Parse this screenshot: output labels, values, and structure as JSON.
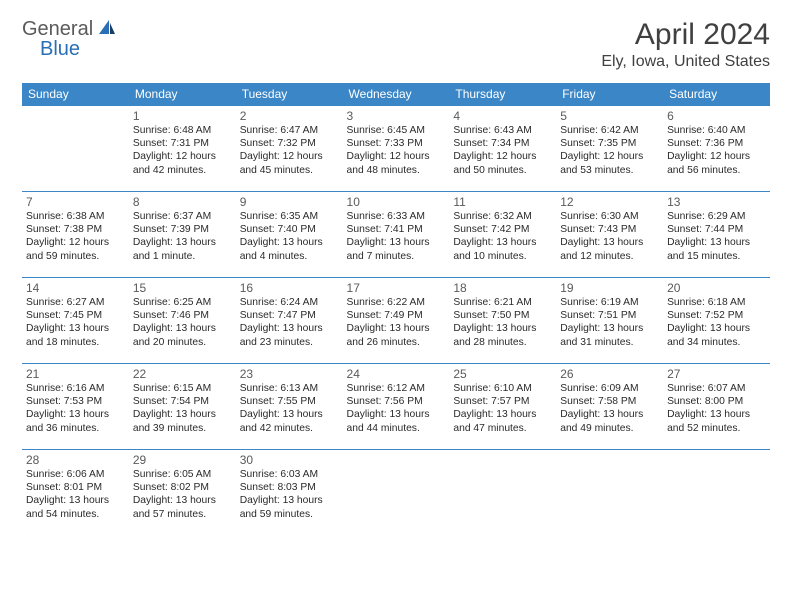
{
  "logo": {
    "general": "General",
    "blue": "Blue"
  },
  "title": "April 2024",
  "location": "Ely, Iowa, United States",
  "header_color": "#3b86c6",
  "border_color": "#3b86c6",
  "dow": [
    "Sunday",
    "Monday",
    "Tuesday",
    "Wednesday",
    "Thursday",
    "Friday",
    "Saturday"
  ],
  "weeks": [
    [
      null,
      {
        "n": "1",
        "sr": "Sunrise: 6:48 AM",
        "ss": "Sunset: 7:31 PM",
        "d1": "Daylight: 12 hours",
        "d2": "and 42 minutes."
      },
      {
        "n": "2",
        "sr": "Sunrise: 6:47 AM",
        "ss": "Sunset: 7:32 PM",
        "d1": "Daylight: 12 hours",
        "d2": "and 45 minutes."
      },
      {
        "n": "3",
        "sr": "Sunrise: 6:45 AM",
        "ss": "Sunset: 7:33 PM",
        "d1": "Daylight: 12 hours",
        "d2": "and 48 minutes."
      },
      {
        "n": "4",
        "sr": "Sunrise: 6:43 AM",
        "ss": "Sunset: 7:34 PM",
        "d1": "Daylight: 12 hours",
        "d2": "and 50 minutes."
      },
      {
        "n": "5",
        "sr": "Sunrise: 6:42 AM",
        "ss": "Sunset: 7:35 PM",
        "d1": "Daylight: 12 hours",
        "d2": "and 53 minutes."
      },
      {
        "n": "6",
        "sr": "Sunrise: 6:40 AM",
        "ss": "Sunset: 7:36 PM",
        "d1": "Daylight: 12 hours",
        "d2": "and 56 minutes."
      }
    ],
    [
      {
        "n": "7",
        "sr": "Sunrise: 6:38 AM",
        "ss": "Sunset: 7:38 PM",
        "d1": "Daylight: 12 hours",
        "d2": "and 59 minutes."
      },
      {
        "n": "8",
        "sr": "Sunrise: 6:37 AM",
        "ss": "Sunset: 7:39 PM",
        "d1": "Daylight: 13 hours",
        "d2": "and 1 minute."
      },
      {
        "n": "9",
        "sr": "Sunrise: 6:35 AM",
        "ss": "Sunset: 7:40 PM",
        "d1": "Daylight: 13 hours",
        "d2": "and 4 minutes."
      },
      {
        "n": "10",
        "sr": "Sunrise: 6:33 AM",
        "ss": "Sunset: 7:41 PM",
        "d1": "Daylight: 13 hours",
        "d2": "and 7 minutes."
      },
      {
        "n": "11",
        "sr": "Sunrise: 6:32 AM",
        "ss": "Sunset: 7:42 PM",
        "d1": "Daylight: 13 hours",
        "d2": "and 10 minutes."
      },
      {
        "n": "12",
        "sr": "Sunrise: 6:30 AM",
        "ss": "Sunset: 7:43 PM",
        "d1": "Daylight: 13 hours",
        "d2": "and 12 minutes."
      },
      {
        "n": "13",
        "sr": "Sunrise: 6:29 AM",
        "ss": "Sunset: 7:44 PM",
        "d1": "Daylight: 13 hours",
        "d2": "and 15 minutes."
      }
    ],
    [
      {
        "n": "14",
        "sr": "Sunrise: 6:27 AM",
        "ss": "Sunset: 7:45 PM",
        "d1": "Daylight: 13 hours",
        "d2": "and 18 minutes."
      },
      {
        "n": "15",
        "sr": "Sunrise: 6:25 AM",
        "ss": "Sunset: 7:46 PM",
        "d1": "Daylight: 13 hours",
        "d2": "and 20 minutes."
      },
      {
        "n": "16",
        "sr": "Sunrise: 6:24 AM",
        "ss": "Sunset: 7:47 PM",
        "d1": "Daylight: 13 hours",
        "d2": "and 23 minutes."
      },
      {
        "n": "17",
        "sr": "Sunrise: 6:22 AM",
        "ss": "Sunset: 7:49 PM",
        "d1": "Daylight: 13 hours",
        "d2": "and 26 minutes."
      },
      {
        "n": "18",
        "sr": "Sunrise: 6:21 AM",
        "ss": "Sunset: 7:50 PM",
        "d1": "Daylight: 13 hours",
        "d2": "and 28 minutes."
      },
      {
        "n": "19",
        "sr": "Sunrise: 6:19 AM",
        "ss": "Sunset: 7:51 PM",
        "d1": "Daylight: 13 hours",
        "d2": "and 31 minutes."
      },
      {
        "n": "20",
        "sr": "Sunrise: 6:18 AM",
        "ss": "Sunset: 7:52 PM",
        "d1": "Daylight: 13 hours",
        "d2": "and 34 minutes."
      }
    ],
    [
      {
        "n": "21",
        "sr": "Sunrise: 6:16 AM",
        "ss": "Sunset: 7:53 PM",
        "d1": "Daylight: 13 hours",
        "d2": "and 36 minutes."
      },
      {
        "n": "22",
        "sr": "Sunrise: 6:15 AM",
        "ss": "Sunset: 7:54 PM",
        "d1": "Daylight: 13 hours",
        "d2": "and 39 minutes."
      },
      {
        "n": "23",
        "sr": "Sunrise: 6:13 AM",
        "ss": "Sunset: 7:55 PM",
        "d1": "Daylight: 13 hours",
        "d2": "and 42 minutes."
      },
      {
        "n": "24",
        "sr": "Sunrise: 6:12 AM",
        "ss": "Sunset: 7:56 PM",
        "d1": "Daylight: 13 hours",
        "d2": "and 44 minutes."
      },
      {
        "n": "25",
        "sr": "Sunrise: 6:10 AM",
        "ss": "Sunset: 7:57 PM",
        "d1": "Daylight: 13 hours",
        "d2": "and 47 minutes."
      },
      {
        "n": "26",
        "sr": "Sunrise: 6:09 AM",
        "ss": "Sunset: 7:58 PM",
        "d1": "Daylight: 13 hours",
        "d2": "and 49 minutes."
      },
      {
        "n": "27",
        "sr": "Sunrise: 6:07 AM",
        "ss": "Sunset: 8:00 PM",
        "d1": "Daylight: 13 hours",
        "d2": "and 52 minutes."
      }
    ],
    [
      {
        "n": "28",
        "sr": "Sunrise: 6:06 AM",
        "ss": "Sunset: 8:01 PM",
        "d1": "Daylight: 13 hours",
        "d2": "and 54 minutes."
      },
      {
        "n": "29",
        "sr": "Sunrise: 6:05 AM",
        "ss": "Sunset: 8:02 PM",
        "d1": "Daylight: 13 hours",
        "d2": "and 57 minutes."
      },
      {
        "n": "30",
        "sr": "Sunrise: 6:03 AM",
        "ss": "Sunset: 8:03 PM",
        "d1": "Daylight: 13 hours",
        "d2": "and 59 minutes."
      },
      null,
      null,
      null,
      null
    ]
  ]
}
